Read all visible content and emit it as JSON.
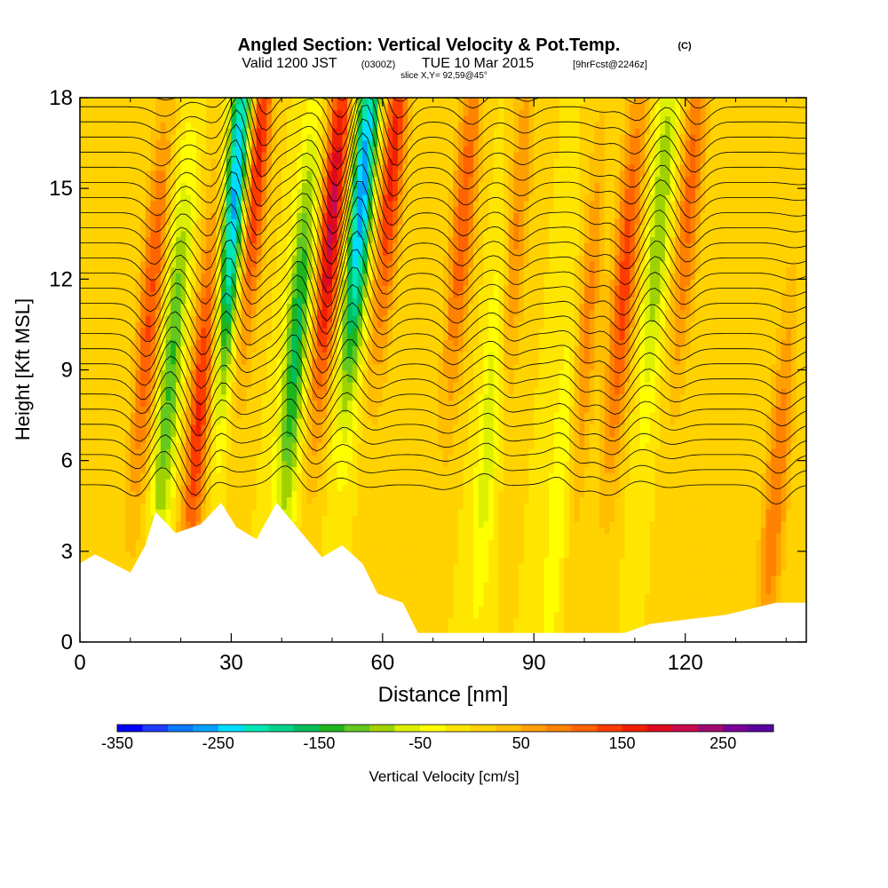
{
  "chart_data": {
    "type": "heatmap",
    "title": "Angled Section: Vertical Velocity & Pot.Temp.",
    "title_suffix": "(C)",
    "subtitle": {
      "valid": "Valid 1200 JST",
      "utc": "(0300Z)",
      "date": "TUE 10 Mar 2015",
      "forecast": "[9hrFcst@2246z]"
    },
    "slice_label": "slice X,Y= 92,59@45°",
    "xlabel": "Distance [nm]",
    "ylabel": "Height [Kft MSL]",
    "xlim": [
      0,
      144
    ],
    "ylim": [
      0,
      18
    ],
    "x_ticks": [
      0,
      30,
      60,
      90,
      120
    ],
    "y_ticks": [
      0,
      3,
      6,
      9,
      12,
      15,
      18
    ],
    "colorbar": {
      "label": "Vertical Velocity [cm/s]",
      "min": -350,
      "max": 300,
      "step": 25,
      "tick_values": [
        -350,
        -250,
        -150,
        -50,
        50,
        150,
        250
      ],
      "colors": [
        "#0000ff",
        "#1e3cff",
        "#0a78ff",
        "#00a0ff",
        "#00dcff",
        "#00e6b4",
        "#00d28c",
        "#00be5a",
        "#1eb41e",
        "#64c81e",
        "#a0d200",
        "#dcf000",
        "#ffff00",
        "#ffe600",
        "#ffd200",
        "#ffbe00",
        "#ffa000",
        "#ff8200",
        "#ff6400",
        "#ff3c00",
        "#f01e00",
        "#dc0a1e",
        "#c80a50",
        "#a00a6e",
        "#780096",
        "#5a00a0"
      ]
    },
    "updraft_cores": [
      {
        "x": 14,
        "y": 11,
        "amplitude": 130
      },
      {
        "x": 24,
        "y": 8,
        "amplitude": 160
      },
      {
        "x": 35,
        "y": 16,
        "amplitude": 180
      },
      {
        "x": 50,
        "y": 14,
        "amplitude": 210
      },
      {
        "x": 62,
        "y": 16,
        "amplitude": 160
      },
      {
        "x": 76,
        "y": 14,
        "amplitude": 120
      },
      {
        "x": 86,
        "y": 13,
        "amplitude": 100
      },
      {
        "x": 100,
        "y": 10,
        "amplitude": 100
      },
      {
        "x": 108,
        "y": 12,
        "amplitude": 140
      },
      {
        "x": 121,
        "y": 15,
        "amplitude": 110
      },
      {
        "x": 138,
        "y": 5,
        "amplitude": 100
      }
    ],
    "downdraft_cores": [
      {
        "x": 18,
        "y": 9,
        "amplitude": -130
      },
      {
        "x": 31,
        "y": 15,
        "amplitude": -280
      },
      {
        "x": 43,
        "y": 10,
        "amplitude": -160
      },
      {
        "x": 56,
        "y": 15,
        "amplitude": -270
      },
      {
        "x": 82,
        "y": 8,
        "amplitude": -90
      },
      {
        "x": 96,
        "y": 6,
        "amplitude": -70
      },
      {
        "x": 115,
        "y": 14,
        "amplitude": -100
      }
    ],
    "terrain_profile": [
      {
        "x": 0,
        "y": 2.6
      },
      {
        "x": 3,
        "y": 2.9
      },
      {
        "x": 10,
        "y": 2.3
      },
      {
        "x": 13,
        "y": 3.2
      },
      {
        "x": 15,
        "y": 4.3
      },
      {
        "x": 19,
        "y": 3.6
      },
      {
        "x": 24,
        "y": 3.9
      },
      {
        "x": 28,
        "y": 4.6
      },
      {
        "x": 31,
        "y": 3.8
      },
      {
        "x": 35,
        "y": 3.4
      },
      {
        "x": 39,
        "y": 4.6
      },
      {
        "x": 44,
        "y": 3.6
      },
      {
        "x": 48,
        "y": 2.8
      },
      {
        "x": 52,
        "y": 3.2
      },
      {
        "x": 56,
        "y": 2.6
      },
      {
        "x": 59,
        "y": 1.6
      },
      {
        "x": 64,
        "y": 1.3
      },
      {
        "x": 67,
        "y": 0.3
      },
      {
        "x": 80,
        "y": 0.3
      },
      {
        "x": 95,
        "y": 0.3
      },
      {
        "x": 108,
        "y": 0.3
      },
      {
        "x": 113,
        "y": 0.6
      },
      {
        "x": 128,
        "y": 0.9
      },
      {
        "x": 138,
        "y": 1.3
      },
      {
        "x": 144,
        "y": 1.3
      }
    ],
    "theta_contours": {
      "label": "Pot.Temp.",
      "min_level": 10,
      "max_level": 42,
      "interval": 1
    }
  }
}
